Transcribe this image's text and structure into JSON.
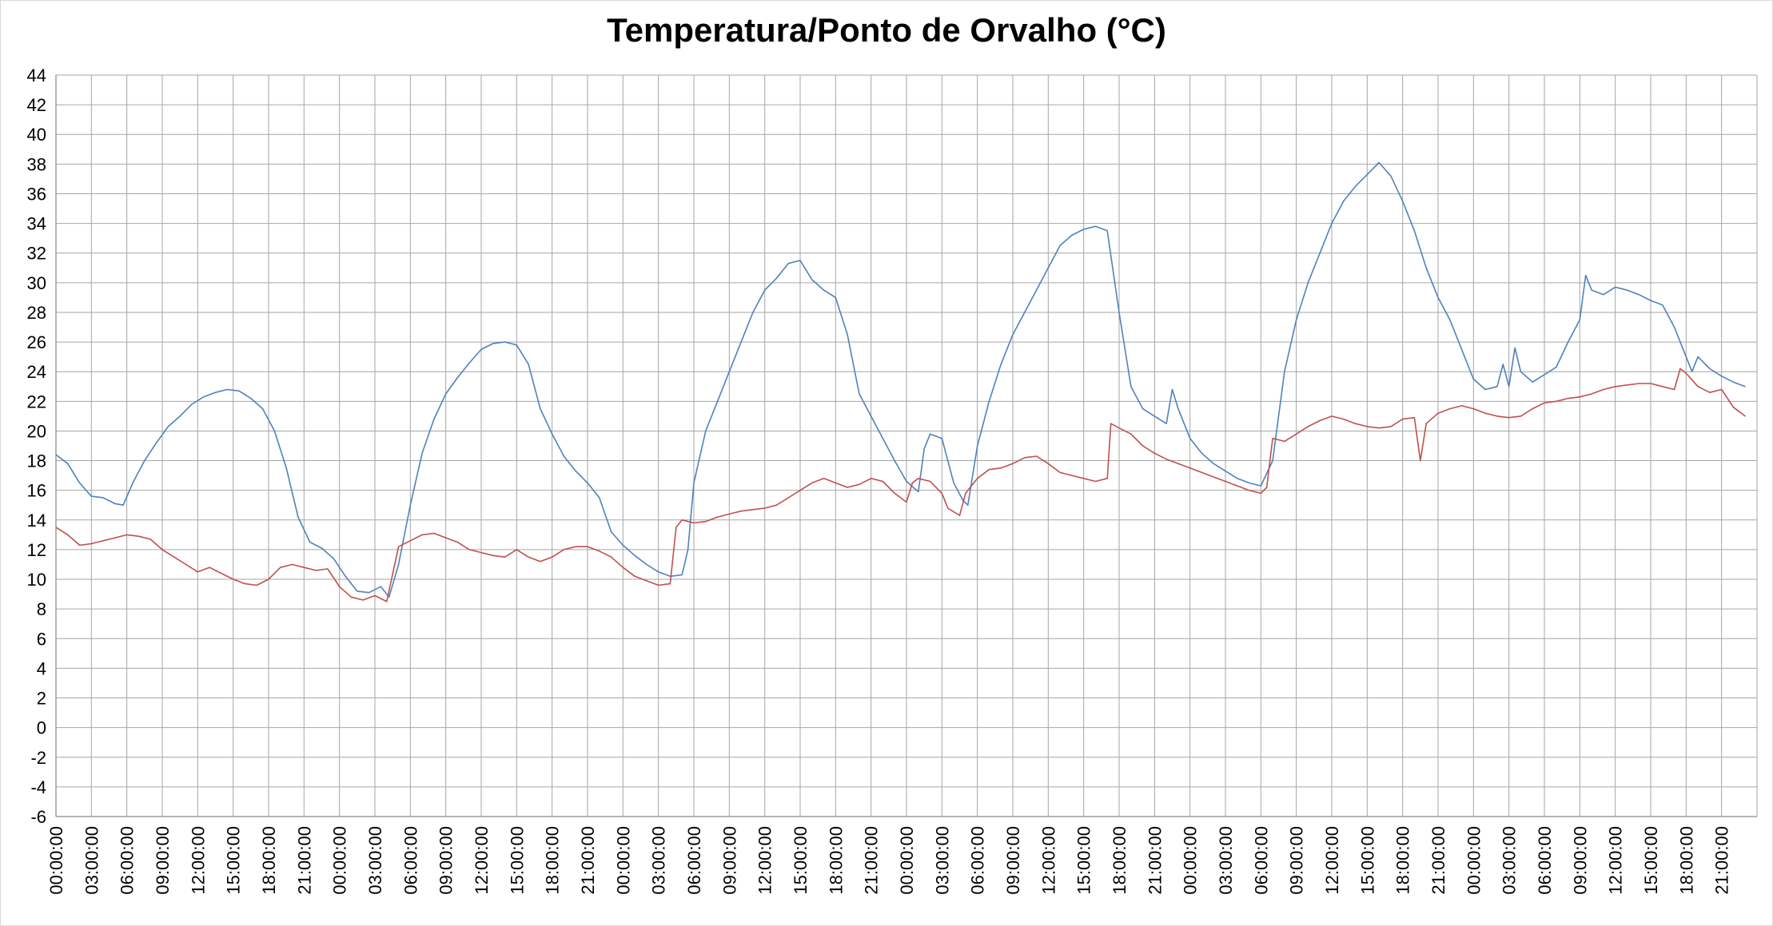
{
  "chart_data": {
    "type": "line",
    "title": "Temperatura/Ponto de Orvalho (°C)",
    "xlabel": "",
    "ylabel": "",
    "ylim": [
      -6,
      44
    ],
    "y_ticks": [
      -6,
      -4,
      -2,
      0,
      2,
      4,
      6,
      8,
      10,
      12,
      14,
      16,
      18,
      20,
      22,
      24,
      26,
      28,
      30,
      32,
      34,
      36,
      38,
      40,
      42,
      44
    ],
    "x_range_hours": [
      0,
      144
    ],
    "x_tick_labels": [
      "00:00:00",
      "03:00:00",
      "06:00:00",
      "09:00:00",
      "12:00:00",
      "15:00:00",
      "18:00:00",
      "21:00:00",
      "00:00:00",
      "03:00:00",
      "06:00:00",
      "09:00:00",
      "12:00:00",
      "15:00:00",
      "18:00:00",
      "21:00:00",
      "00:00:00",
      "03:00:00",
      "06:00:00",
      "09:00:00",
      "12:00:00",
      "15:00:00",
      "18:00:00",
      "21:00:00",
      "00:00:00",
      "03:00:00",
      "06:00:00",
      "09:00:00",
      "12:00:00",
      "15:00:00",
      "18:00:00",
      "21:00:00",
      "00:00:00",
      "03:00:00",
      "06:00:00",
      "09:00:00",
      "12:00:00",
      "15:00:00",
      "18:00:00",
      "21:00:00",
      "00:00:00",
      "03:00:00",
      "06:00:00",
      "09:00:00",
      "12:00:00",
      "15:00:00",
      "18:00:00",
      "21:00:00"
    ],
    "grid": true,
    "legend": "none",
    "series": [
      {
        "color": "#4f81bd",
        "points": [
          [
            0,
            18.4
          ],
          [
            1,
            17.8
          ],
          [
            2,
            16.5
          ],
          [
            3,
            15.6
          ],
          [
            4,
            15.5
          ],
          [
            5,
            15.1
          ],
          [
            5.7,
            15.0
          ],
          [
            6.5,
            16.5
          ],
          [
            7.5,
            18.0
          ],
          [
            8.5,
            19.2
          ],
          [
            9.5,
            20.3
          ],
          [
            10.5,
            21.0
          ],
          [
            11.5,
            21.8
          ],
          [
            12.5,
            22.3
          ],
          [
            13.5,
            22.6
          ],
          [
            14.5,
            22.8
          ],
          [
            15.5,
            22.7
          ],
          [
            16.5,
            22.2
          ],
          [
            17.5,
            21.5
          ],
          [
            18.5,
            20.0
          ],
          [
            19.5,
            17.5
          ],
          [
            20.5,
            14.2
          ],
          [
            21.5,
            12.5
          ],
          [
            22.5,
            12.1
          ],
          [
            23.5,
            11.4
          ],
          [
            24.5,
            10.2
          ],
          [
            25.5,
            9.2
          ],
          [
            26.5,
            9.1
          ],
          [
            27.5,
            9.5
          ],
          [
            28.2,
            8.8
          ],
          [
            29,
            11.0
          ],
          [
            30,
            15.0
          ],
          [
            31,
            18.5
          ],
          [
            32,
            20.8
          ],
          [
            33,
            22.5
          ],
          [
            34,
            23.6
          ],
          [
            35,
            24.6
          ],
          [
            36,
            25.5
          ],
          [
            37,
            25.9
          ],
          [
            38,
            26.0
          ],
          [
            39,
            25.8
          ],
          [
            40,
            24.5
          ],
          [
            41,
            21.5
          ],
          [
            42,
            19.8
          ],
          [
            43,
            18.3
          ],
          [
            44,
            17.3
          ],
          [
            45,
            16.5
          ],
          [
            46,
            15.5
          ],
          [
            47,
            13.2
          ],
          [
            48,
            12.3
          ],
          [
            49,
            11.6
          ],
          [
            50,
            11.0
          ],
          [
            51,
            10.5
          ],
          [
            52,
            10.2
          ],
          [
            53,
            10.3
          ],
          [
            53.5,
            12.0
          ],
          [
            54,
            16.5
          ],
          [
            55,
            20.0
          ],
          [
            56,
            22.0
          ],
          [
            57,
            24.0
          ],
          [
            58,
            26.0
          ],
          [
            59,
            28.0
          ],
          [
            60,
            29.5
          ],
          [
            61,
            30.3
          ],
          [
            62,
            31.3
          ],
          [
            63,
            31.5
          ],
          [
            64,
            30.2
          ],
          [
            65,
            29.5
          ],
          [
            66,
            29.0
          ],
          [
            67,
            26.5
          ],
          [
            68,
            22.5
          ],
          [
            69,
            21.0
          ],
          [
            70,
            19.5
          ],
          [
            71,
            18.0
          ],
          [
            72,
            16.6
          ],
          [
            73,
            15.9
          ],
          [
            73.5,
            18.8
          ],
          [
            74,
            19.8
          ],
          [
            75,
            19.5
          ],
          [
            76,
            16.5
          ],
          [
            76.8,
            15.3
          ],
          [
            77.2,
            15.0
          ],
          [
            78,
            19.0
          ],
          [
            79,
            22.0
          ],
          [
            80,
            24.5
          ],
          [
            81,
            26.5
          ],
          [
            82,
            28.0
          ],
          [
            83,
            29.5
          ],
          [
            84,
            31.0
          ],
          [
            85,
            32.5
          ],
          [
            86,
            33.2
          ],
          [
            87,
            33.6
          ],
          [
            88,
            33.8
          ],
          [
            89,
            33.5
          ],
          [
            90,
            28.0
          ],
          [
            91,
            23.0
          ],
          [
            92,
            21.5
          ],
          [
            93,
            21.0
          ],
          [
            94,
            20.5
          ],
          [
            94.5,
            22.8
          ],
          [
            95,
            21.5
          ],
          [
            96,
            19.5
          ],
          [
            97,
            18.5
          ],
          [
            98,
            17.8
          ],
          [
            99,
            17.3
          ],
          [
            100,
            16.8
          ],
          [
            101,
            16.5
          ],
          [
            102,
            16.3
          ],
          [
            103,
            18.0
          ],
          [
            104,
            24.0
          ],
          [
            105,
            27.5
          ],
          [
            106,
            30.0
          ],
          [
            107,
            32.0
          ],
          [
            108,
            34.0
          ],
          [
            109,
            35.5
          ],
          [
            110,
            36.5
          ],
          [
            111,
            37.3
          ],
          [
            112,
            38.1
          ],
          [
            113,
            37.2
          ],
          [
            114,
            35.5
          ],
          [
            115,
            33.5
          ],
          [
            116,
            31.0
          ],
          [
            117,
            29.0
          ],
          [
            118,
            27.5
          ],
          [
            119,
            25.5
          ],
          [
            120,
            23.5
          ],
          [
            121,
            22.8
          ],
          [
            122,
            23.0
          ],
          [
            122.5,
            24.5
          ],
          [
            123,
            23.0
          ],
          [
            123.5,
            25.6
          ],
          [
            124,
            24.0
          ],
          [
            125,
            23.3
          ],
          [
            126,
            23.8
          ],
          [
            127,
            24.3
          ],
          [
            128,
            26.0
          ],
          [
            129,
            27.5
          ],
          [
            129.5,
            30.5
          ],
          [
            130,
            29.5
          ],
          [
            131,
            29.2
          ],
          [
            132,
            29.7
          ],
          [
            133,
            29.5
          ],
          [
            134,
            29.2
          ],
          [
            135,
            28.8
          ],
          [
            136,
            28.5
          ],
          [
            137,
            27.0
          ],
          [
            138,
            25.0
          ],
          [
            138.5,
            24.0
          ],
          [
            139,
            25.0
          ],
          [
            140,
            24.2
          ],
          [
            141,
            23.7
          ],
          [
            142,
            23.3
          ],
          [
            143,
            23.0
          ]
        ]
      },
      {
        "color": "#c0504d",
        "points": [
          [
            0,
            13.5
          ],
          [
            1,
            13.0
          ],
          [
            2,
            12.3
          ],
          [
            3,
            12.4
          ],
          [
            4,
            12.6
          ],
          [
            5,
            12.8
          ],
          [
            6,
            13.0
          ],
          [
            7,
            12.9
          ],
          [
            8,
            12.7
          ],
          [
            9,
            12.0
          ],
          [
            10,
            11.5
          ],
          [
            11,
            11.0
          ],
          [
            12,
            10.5
          ],
          [
            13,
            10.8
          ],
          [
            14,
            10.4
          ],
          [
            15,
            10.0
          ],
          [
            16,
            9.7
          ],
          [
            17,
            9.6
          ],
          [
            18,
            10.0
          ],
          [
            19,
            10.8
          ],
          [
            20,
            11.0
          ],
          [
            21,
            10.8
          ],
          [
            22,
            10.6
          ],
          [
            23,
            10.7
          ],
          [
            24,
            9.5
          ],
          [
            25,
            8.8
          ],
          [
            26,
            8.6
          ],
          [
            27,
            8.9
          ],
          [
            28,
            8.5
          ],
          [
            29,
            12.2
          ],
          [
            30,
            12.6
          ],
          [
            31,
            13.0
          ],
          [
            32,
            13.1
          ],
          [
            33,
            12.8
          ],
          [
            34,
            12.5
          ],
          [
            35,
            12.0
          ],
          [
            36,
            11.8
          ],
          [
            37,
            11.6
          ],
          [
            38,
            11.5
          ],
          [
            39,
            12.0
          ],
          [
            40,
            11.5
          ],
          [
            41,
            11.2
          ],
          [
            42,
            11.5
          ],
          [
            43,
            12.0
          ],
          [
            44,
            12.2
          ],
          [
            45,
            12.2
          ],
          [
            46,
            11.9
          ],
          [
            47,
            11.5
          ],
          [
            48,
            10.8
          ],
          [
            49,
            10.2
          ],
          [
            50,
            9.9
          ],
          [
            51,
            9.6
          ],
          [
            52,
            9.7
          ],
          [
            52.5,
            13.5
          ],
          [
            53,
            14.0
          ],
          [
            54,
            13.8
          ],
          [
            55,
            13.9
          ],
          [
            56,
            14.2
          ],
          [
            57,
            14.4
          ],
          [
            58,
            14.6
          ],
          [
            59,
            14.7
          ],
          [
            60,
            14.8
          ],
          [
            61,
            15.0
          ],
          [
            62,
            15.5
          ],
          [
            63,
            16.0
          ],
          [
            64,
            16.5
          ],
          [
            65,
            16.8
          ],
          [
            66,
            16.5
          ],
          [
            67,
            16.2
          ],
          [
            68,
            16.4
          ],
          [
            69,
            16.8
          ],
          [
            70,
            16.6
          ],
          [
            71,
            15.8
          ],
          [
            72,
            15.2
          ],
          [
            72.5,
            16.5
          ],
          [
            73,
            16.8
          ],
          [
            74,
            16.6
          ],
          [
            75,
            15.8
          ],
          [
            75.5,
            14.8
          ],
          [
            76.5,
            14.3
          ],
          [
            77,
            15.8
          ],
          [
            78,
            16.8
          ],
          [
            79,
            17.4
          ],
          [
            80,
            17.5
          ],
          [
            81,
            17.8
          ],
          [
            82,
            18.2
          ],
          [
            83,
            18.3
          ],
          [
            84,
            17.8
          ],
          [
            85,
            17.2
          ],
          [
            86,
            17.0
          ],
          [
            87,
            16.8
          ],
          [
            88,
            16.6
          ],
          [
            89,
            16.8
          ],
          [
            89.3,
            20.5
          ],
          [
            90,
            20.2
          ],
          [
            91,
            19.8
          ],
          [
            92,
            19.0
          ],
          [
            93,
            18.5
          ],
          [
            94,
            18.1
          ],
          [
            95,
            17.8
          ],
          [
            96,
            17.5
          ],
          [
            97,
            17.2
          ],
          [
            98,
            16.9
          ],
          [
            99,
            16.6
          ],
          [
            100,
            16.3
          ],
          [
            101,
            16.0
          ],
          [
            102,
            15.8
          ],
          [
            102.5,
            16.2
          ],
          [
            103,
            19.5
          ],
          [
            104,
            19.3
          ],
          [
            105,
            19.8
          ],
          [
            106,
            20.3
          ],
          [
            107,
            20.7
          ],
          [
            108,
            21.0
          ],
          [
            109,
            20.8
          ],
          [
            110,
            20.5
          ],
          [
            111,
            20.3
          ],
          [
            112,
            20.2
          ],
          [
            113,
            20.3
          ],
          [
            114,
            20.8
          ],
          [
            115,
            20.9
          ],
          [
            115.5,
            18.0
          ],
          [
            116,
            20.5
          ],
          [
            117,
            21.2
          ],
          [
            118,
            21.5
          ],
          [
            119,
            21.7
          ],
          [
            120,
            21.5
          ],
          [
            121,
            21.2
          ],
          [
            122,
            21.0
          ],
          [
            123,
            20.9
          ],
          [
            124,
            21.0
          ],
          [
            125,
            21.5
          ],
          [
            126,
            21.9
          ],
          [
            127,
            22.0
          ],
          [
            128,
            22.2
          ],
          [
            129,
            22.3
          ],
          [
            130,
            22.5
          ],
          [
            131,
            22.8
          ],
          [
            132,
            23.0
          ],
          [
            133,
            23.1
          ],
          [
            134,
            23.2
          ],
          [
            135,
            23.2
          ],
          [
            136,
            23.0
          ],
          [
            137,
            22.8
          ],
          [
            137.5,
            24.2
          ],
          [
            138,
            23.9
          ],
          [
            139,
            23.0
          ],
          [
            140,
            22.6
          ],
          [
            141,
            22.8
          ],
          [
            142,
            21.6
          ],
          [
            143,
            21.0
          ]
        ]
      }
    ]
  }
}
